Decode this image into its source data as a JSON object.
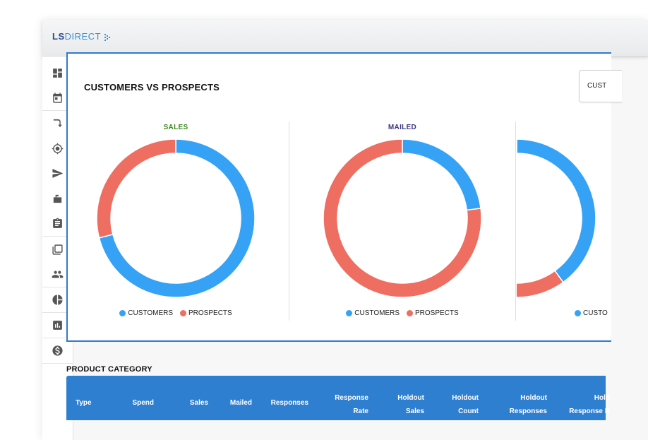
{
  "brand": {
    "ls": "LS",
    "direct": "DIRECT"
  },
  "sidebar": {
    "items": [
      {
        "icon": "dashboard-icon"
      },
      {
        "icon": "calendar-icon"
      },
      {
        "icon": "turn-arrow-icon"
      },
      {
        "icon": "target-icon"
      },
      {
        "icon": "send-icon"
      },
      {
        "icon": "mailbox-icon"
      },
      {
        "icon": "clipboard-icon"
      },
      {
        "icon": "copy-icon"
      },
      {
        "icon": "people-icon"
      },
      {
        "icon": "pie-chart-icon"
      },
      {
        "icon": "bar-chart-icon"
      },
      {
        "icon": "dollar-icon"
      }
    ]
  },
  "panel": {
    "title": "CUSTOMERS VS PROSPECTS",
    "dropdown_value": "CUST"
  },
  "colors": {
    "customers": "#36a2f5",
    "prospects": "#ee6e61",
    "sales_title": "#3b8a1f",
    "mailed_title": "#3b3680",
    "header": "#2f7fd0"
  },
  "legend": {
    "customers": "CUSTOMERS",
    "prospects": "PROSPECTS",
    "customers_cut": "CUSTO"
  },
  "chart_data": [
    {
      "type": "pie",
      "title": "SALES",
      "labels": [
        "CUSTOMERS",
        "PROSPECTS"
      ],
      "values": [
        71,
        29
      ]
    },
    {
      "type": "pie",
      "title": "MAILED",
      "labels": [
        "CUSTOMERS",
        "PROSPECTS"
      ],
      "values": [
        23,
        77
      ]
    },
    {
      "type": "pie",
      "title": "",
      "labels": [
        "CUSTOMERS",
        "PROSPECTS"
      ],
      "values": [
        40,
        60
      ]
    }
  ],
  "table": {
    "title": "PRODUCT CATEGORY",
    "headers": [
      {
        "l1": "",
        "l2": "Type"
      },
      {
        "l1": "",
        "l2": "Spend"
      },
      {
        "l1": "",
        "l2": "Sales"
      },
      {
        "l1": "",
        "l2": "Mailed"
      },
      {
        "l1": "",
        "l2": "Responses"
      },
      {
        "l1": "Response",
        "l2": "Rate"
      },
      {
        "l1": "Holdout",
        "l2": "Sales"
      },
      {
        "l1": "Holdout",
        "l2": "Count"
      },
      {
        "l1": "Holdout",
        "l2": "Responses"
      },
      {
        "l1": "Hold",
        "l2": "Response R"
      }
    ]
  }
}
